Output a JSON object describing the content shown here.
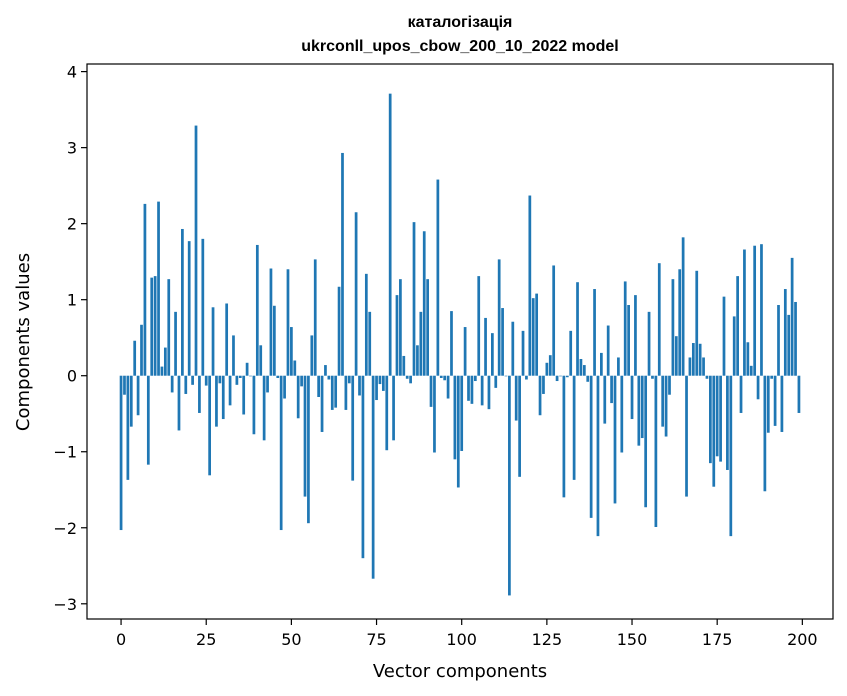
{
  "chart_data": {
    "type": "bar",
    "title_line1": "каталогізація",
    "title_line2": "ukrconll_upos_cbow_200_10_2022 model",
    "xlabel": "Vector components",
    "ylabel": "Components values",
    "xlim": [
      -10,
      209
    ],
    "ylim": [
      -3.2,
      4.1
    ],
    "xticks": [
      0,
      25,
      50,
      75,
      100,
      125,
      150,
      175,
      200
    ],
    "yticks": [
      -3,
      -2,
      -1,
      0,
      1,
      2,
      3,
      4
    ],
    "bar_color": "#1f77b4",
    "grid": false,
    "x": [
      0,
      1,
      2,
      3,
      4,
      5,
      6,
      7,
      8,
      9,
      10,
      11,
      12,
      13,
      14,
      15,
      16,
      17,
      18,
      19,
      20,
      21,
      22,
      23,
      24,
      25,
      26,
      27,
      28,
      29,
      30,
      31,
      32,
      33,
      34,
      35,
      36,
      37,
      38,
      39,
      40,
      41,
      42,
      43,
      44,
      45,
      46,
      47,
      48,
      49,
      50,
      51,
      52,
      53,
      54,
      55,
      56,
      57,
      58,
      59,
      60,
      61,
      62,
      63,
      64,
      65,
      66,
      67,
      68,
      69,
      70,
      71,
      72,
      73,
      74,
      75,
      76,
      77,
      78,
      79,
      80,
      81,
      82,
      83,
      84,
      85,
      86,
      87,
      88,
      89,
      90,
      91,
      92,
      93,
      94,
      95,
      96,
      97,
      98,
      99,
      100,
      101,
      102,
      103,
      104,
      105,
      106,
      107,
      108,
      109,
      110,
      111,
      112,
      113,
      114,
      115,
      116,
      117,
      118,
      119,
      120,
      121,
      122,
      123,
      124,
      125,
      126,
      127,
      128,
      129,
      130,
      131,
      132,
      133,
      134,
      135,
      136,
      137,
      138,
      139,
      140,
      141,
      142,
      143,
      144,
      145,
      146,
      147,
      148,
      149,
      150,
      151,
      152,
      153,
      154,
      155,
      156,
      157,
      158,
      159,
      160,
      161,
      162,
      163,
      164,
      165,
      166,
      167,
      168,
      169,
      170,
      171,
      172,
      173,
      174,
      175,
      176,
      177,
      178,
      179,
      180,
      181,
      182,
      183,
      184,
      185,
      186,
      187,
      188,
      189,
      190,
      191,
      192,
      193,
      194,
      195,
      196,
      197,
      198,
      199
    ],
    "values": [
      -2.03,
      -0.25,
      -1.37,
      -0.67,
      0.46,
      -0.52,
      0.67,
      2.26,
      -1.17,
      1.29,
      1.31,
      2.29,
      0.12,
      0.37,
      1.27,
      -0.22,
      0.84,
      -0.72,
      1.93,
      -0.24,
      1.77,
      -0.12,
      3.29,
      -0.49,
      1.8,
      -0.13,
      -1.31,
      0.9,
      -0.67,
      -0.1,
      -0.57,
      0.95,
      -0.39,
      0.53,
      -0.12,
      -0.03,
      -0.51,
      0.17,
      0.0,
      -0.77,
      1.72,
      0.4,
      -0.85,
      -0.22,
      1.41,
      0.92,
      -0.03,
      -2.03,
      -0.3,
      1.4,
      0.64,
      0.2,
      -0.56,
      -0.14,
      -1.59,
      -1.94,
      0.53,
      1.53,
      -0.28,
      -0.74,
      0.14,
      -0.05,
      -0.45,
      -0.42,
      1.17,
      2.93,
      -0.45,
      -0.1,
      -1.38,
      2.15,
      -0.26,
      -2.4,
      1.34,
      0.84,
      -2.67,
      -0.32,
      -0.11,
      -0.2,
      -0.98,
      3.71,
      -0.85,
      1.06,
      1.27,
      0.26,
      -0.04,
      -0.1,
      2.02,
      0.4,
      0.84,
      1.9,
      1.27,
      -0.41,
      -1.01,
      2.58,
      -0.03,
      -0.06,
      -0.3,
      0.85,
      -1.1,
      -1.47,
      -0.99,
      0.64,
      -0.33,
      -0.37,
      -0.07,
      1.31,
      -0.39,
      0.76,
      -0.44,
      0.56,
      -0.16,
      1.53,
      0.89,
      0.0,
      -2.89,
      0.71,
      -0.59,
      -1.33,
      0.59,
      -0.05,
      2.37,
      1.02,
      1.08,
      -0.52,
      -0.24,
      0.17,
      0.27,
      1.45,
      -0.07,
      0.0,
      -1.6,
      -0.02,
      0.59,
      -1.37,
      1.23,
      0.22,
      0.14,
      -0.08,
      -1.87,
      1.14,
      -2.11,
      0.3,
      -0.63,
      0.66,
      -0.36,
      -1.68,
      0.24,
      -1.01,
      1.24,
      0.93,
      -0.57,
      1.06,
      -0.92,
      -0.82,
      -1.73,
      0.84,
      -0.04,
      -1.99,
      1.48,
      -0.67,
      -0.8,
      -0.25,
      1.27,
      0.52,
      1.4,
      1.82,
      -1.59,
      0.24,
      0.43,
      1.38,
      0.42,
      0.24,
      -0.04,
      -1.15,
      -1.46,
      -1.06,
      -1.13,
      1.04,
      -1.24,
      -2.11,
      0.78,
      1.31,
      -0.49,
      1.66,
      0.44,
      0.13,
      1.71,
      -0.31,
      1.73,
      -1.52,
      -0.75,
      -0.04,
      -0.66,
      0.93,
      -0.74,
      1.14,
      0.8,
      1.55,
      0.97,
      -0.49
    ]
  }
}
